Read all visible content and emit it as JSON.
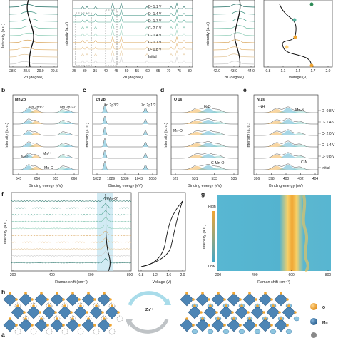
{
  "panel_letters": {
    "b": "b",
    "c": "c",
    "d": "d",
    "e": "e",
    "f": "f",
    "g": "g",
    "h": "h",
    "a": "a"
  },
  "top_row": {
    "p1_xlabel": "2θ (degree)",
    "p1_ylabel": "Intensity (a.u.)",
    "p1_ticks": [
      "28.0",
      "28.5",
      "29.0",
      "29.5"
    ],
    "p2_xlabel": "2θ (degree)",
    "p2_ylabel": "Intensity (a.u.)",
    "p2_ticks": [
      "25",
      "30",
      "35",
      "40",
      "45",
      "50",
      "55",
      "60",
      "65",
      "70",
      "75",
      "80"
    ],
    "p2_legend": [
      "D- 1.1 V",
      "D- 1.4 V",
      "D- 1.7 V",
      "C- 2.0 V",
      "C- 1.4 V",
      "C- 1.1 V",
      "D- 0.8 V",
      "Initial"
    ],
    "p3_xlabel": "2θ (degree)",
    "p3_ylabel": "Intensity (a.u.)",
    "p3_ticks": [
      "42.0",
      "43.0",
      "44.0"
    ],
    "p4_xlabel": "Voltage (V)",
    "p4_ticks": [
      "0.8",
      "1.1",
      "1.4",
      "1.7",
      "2.0"
    ]
  },
  "xps": {
    "b_title": "Mn 2p",
    "b_peaks": [
      "Mn 2p3/2",
      "Mn 2p1/2"
    ],
    "b_tags": [
      "Mn³⁺",
      "Mn²⁺",
      "Mn-C"
    ],
    "b_ticks": [
      "645",
      "650",
      "655",
      "660"
    ],
    "c_title": "Zn 2p",
    "c_peaks": [
      "Zn 2p3/2",
      "Zn 2p1/2"
    ],
    "c_ticks": [
      "1022",
      "1029",
      "1036",
      "1043",
      "1050"
    ],
    "d_title": "O 1s",
    "d_tags": [
      "H-O",
      "Mn-O",
      "C-Mn-O"
    ],
    "d_ticks": [
      "529",
      "531",
      "533",
      "535"
    ],
    "e_title": "N 1s",
    "e_tags": [
      "-NH",
      "Mn-N",
      "C-N"
    ],
    "e_ticks": [
      "396",
      "398",
      "400",
      "402",
      "404"
    ],
    "xlabel": "Binding energy (eV)",
    "ylabel": "Intensity (a. u.)",
    "legend": [
      "D- 0.8 V",
      "D- 1.4 V",
      "C- 2.0 V",
      "C- 1.4 V",
      "D- 0.8 V",
      "Initial"
    ]
  },
  "raman": {
    "f_annotation": "V(Mn-O)",
    "f_xlabel": "Raman shift (cm⁻¹)",
    "f_ylabel": "Intensity (a.u.)",
    "f_ticks": [
      "200",
      "400",
      "600",
      "800"
    ],
    "volt_xlabel": "Voltage (V)",
    "volt_ticks": [
      "0.8",
      "1.2",
      "1.6",
      "2.0"
    ],
    "g_xlabel": "Raman shift (cm⁻¹)",
    "g_ylabel": "Intensity (a.u.)",
    "g_ticks": [
      "200",
      "400",
      "600",
      "800"
    ],
    "g_high": "High",
    "g_low": "Low",
    "colors": {
      "high": "#f2a531",
      "low": "#3ea6c8",
      "map": "#4fb4cf"
    }
  },
  "scheme": {
    "zn_label": "Zn²⁺",
    "legend": [
      "O",
      "Mn"
    ],
    "colors": {
      "O": "#f0a531",
      "Mn": "#2f6c9e",
      "Zn": "#8ec6e0"
    }
  }
}
